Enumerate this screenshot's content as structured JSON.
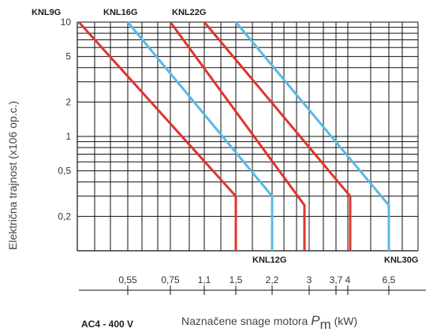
{
  "chart_data": {
    "type": "line",
    "ylabel": "Električna trajnost (x106 op.c.)",
    "xlabel_text": "Naznačene snage motora ",
    "xlabel_symbol": "P",
    "xlabel_subscript": "m",
    "xlabel_unit": " (kW)",
    "condition": "AC4 - 400 V",
    "y_scale": "log",
    "ylim": [
      0.1,
      10
    ],
    "y_ticks": [
      {
        "value": 10,
        "label": "10"
      },
      {
        "value": 5,
        "label": "5"
      },
      {
        "value": 2,
        "label": "2"
      },
      {
        "value": 1,
        "label": "1"
      },
      {
        "value": 0.5,
        "label": "0,5"
      },
      {
        "value": 0.2,
        "label": "0,2"
      }
    ],
    "x_ticks": [
      {
        "value": 0.55,
        "label": "0,55"
      },
      {
        "value": 0.75,
        "label": "0,75"
      },
      {
        "value": 1.1,
        "label": "1,1"
      },
      {
        "value": 1.5,
        "label": "1,5"
      },
      {
        "value": 2.2,
        "label": "2,2"
      },
      {
        "value": 3,
        "label": "3"
      },
      {
        "value": 3.7,
        "label": "3,7"
      },
      {
        "value": 4,
        "label": "4"
      },
      {
        "value": 6.5,
        "label": "6,5"
      }
    ],
    "grid": true,
    "series": [
      {
        "name": "KNL9G",
        "color": "#e0342c",
        "points": [
          [
            0.37,
            10
          ],
          [
            1.5,
            0.3
          ],
          [
            1.5,
            0.1
          ]
        ]
      },
      {
        "name": "KNL12G",
        "color": "#5ab8e6",
        "points": [
          [
            0.55,
            10
          ],
          [
            2.2,
            0.3
          ],
          [
            2.2,
            0.1
          ]
        ]
      },
      {
        "name": "KNL16G",
        "color": "#e0342c",
        "points": [
          [
            0.75,
            10
          ],
          [
            2.9,
            0.25
          ],
          [
            2.9,
            0.1
          ]
        ]
      },
      {
        "name": "KNL22G",
        "color": "#e0342c",
        "points": [
          [
            1.1,
            10
          ],
          [
            4.1,
            0.3
          ],
          [
            4.1,
            0.1
          ]
        ]
      },
      {
        "name": "KNL30G",
        "color": "#5ab8e6",
        "points": [
          [
            1.6,
            10
          ],
          [
            6.5,
            0.25
          ],
          [
            6.5,
            0.1
          ]
        ]
      }
    ]
  }
}
